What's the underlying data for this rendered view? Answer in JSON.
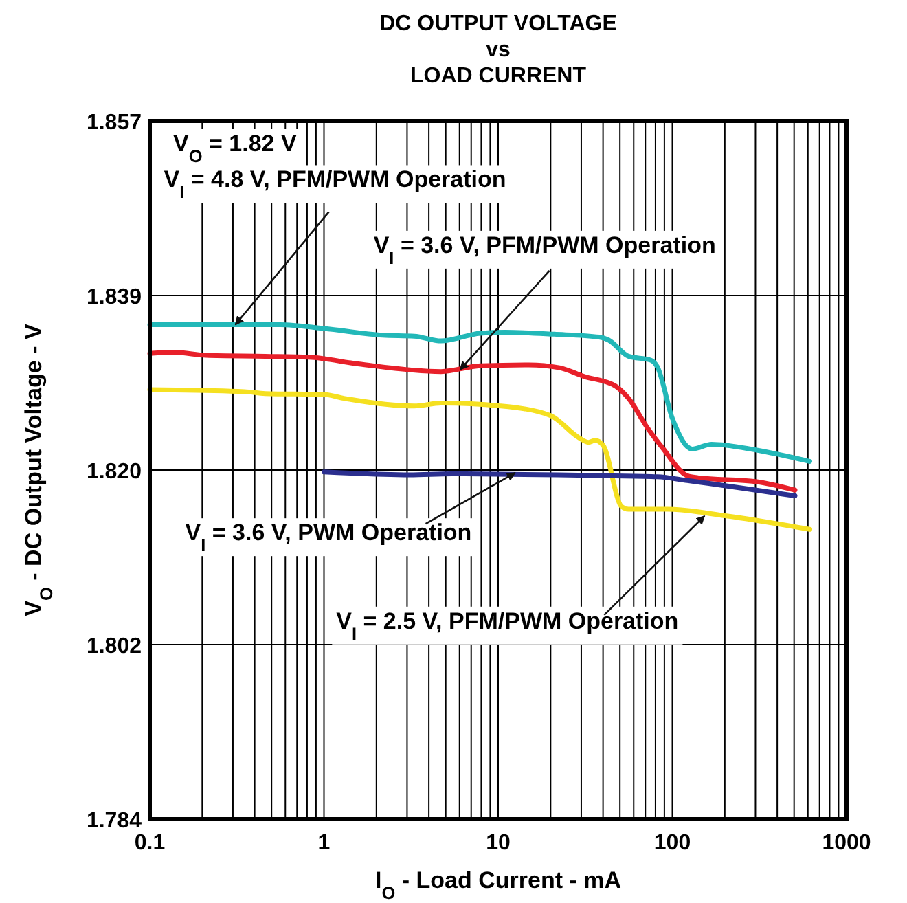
{
  "chart_data": {
    "type": "line",
    "title": "DC OUTPUT VOLTAGE\nvs\nLOAD CURRENT",
    "xlabel": "I$_{O}$ - Load Current - mA",
    "ylabel": "V$_{O}$ - DC Output Voltage - V",
    "log": "x",
    "grid": true,
    "line_style": "solid",
    "xlim": [
      0.1,
      1000
    ],
    "xticks": [
      0.1,
      1,
      10,
      100,
      1000
    ],
    "ylim": [
      1.784,
      1.857
    ],
    "yticks": [
      {
        "value": 1.784,
        "label": "1.784"
      },
      {
        "value": 1.80225,
        "label": "1.802"
      },
      {
        "value": 1.8205,
        "label": "1.820"
      },
      {
        "value": 1.83875,
        "label": "1.839"
      },
      {
        "value": 1.857,
        "label": "1.857"
      }
    ],
    "series": [
      {
        "color": "#22b8b8",
        "x": [
          0.1,
          0.56,
          1,
          2.17,
          3.3,
          4.7,
          7.9,
          11,
          21,
          38,
          43,
          56,
          75,
          82,
          100,
          130,
          168,
          301,
          615
        ],
        "values": [
          1.8357,
          1.8357,
          1.8353,
          1.8346,
          1.8345,
          1.834,
          1.8348,
          1.8349,
          1.8347,
          1.8344,
          1.8341,
          1.8324,
          1.832,
          1.8313,
          1.8259,
          1.8227,
          1.8232,
          1.8226,
          1.8214
        ]
      },
      {
        "color": "#e8202a",
        "x": [
          0.1,
          0.14,
          0.21,
          0.46,
          0.82,
          1.57,
          4.7,
          7.9,
          15,
          22.5,
          31,
          47,
          56,
          72,
          88,
          122,
          140,
          301,
          506
        ],
        "values": [
          1.8327,
          1.8328,
          1.8325,
          1.8324,
          1.8323,
          1.8316,
          1.8308,
          1.8314,
          1.8315,
          1.8312,
          1.8303,
          1.8293,
          1.828,
          1.8249,
          1.8228,
          1.8199,
          1.8197,
          1.8193,
          1.8184
        ]
      },
      {
        "color": "#f5e020",
        "x": [
          0.1,
          0.35,
          0.46,
          1,
          1.3,
          3.3,
          4.7,
          10.3,
          20,
          29,
          33,
          36,
          40,
          51,
          56,
          94,
          204,
          615
        ],
        "values": [
          1.8289,
          1.8287,
          1.8285,
          1.8284,
          1.828,
          1.8272,
          1.8275,
          1.8272,
          1.8262,
          1.8239,
          1.8234,
          1.8236,
          1.8231,
          1.8167,
          1.8164,
          1.8164,
          1.8157,
          1.8143
        ]
      },
      {
        "color": "#2b2f8f",
        "x": [
          1,
          3.1,
          5.4,
          22,
          43,
          82,
          122,
          506
        ],
        "values": [
          1.8203,
          1.82,
          1.8201,
          1.82,
          1.8199,
          1.8198,
          1.8194,
          1.8178
        ]
      }
    ],
    "annotations": [
      "V$_{O}$ = 1.82 V",
      {
        "text": "V$_{I}$ = 4.8 V, PFM/PWM Operation",
        "x": 0.31,
        "y": 1.8357
      },
      {
        "text": "V$_{I}$ = 3.6 V, PFM/PWM Operation",
        "x": 6.05,
        "y": 1.831
      },
      {
        "text": "V$_{I}$ = 3.6 V, PWM Operation",
        "x": 12.5,
        "y": 1.8202
      },
      {
        "text": "V$_{I}$ = 2.5 V, PFM/PWM Operation",
        "x": 153,
        "y": 1.8157
      }
    ]
  }
}
